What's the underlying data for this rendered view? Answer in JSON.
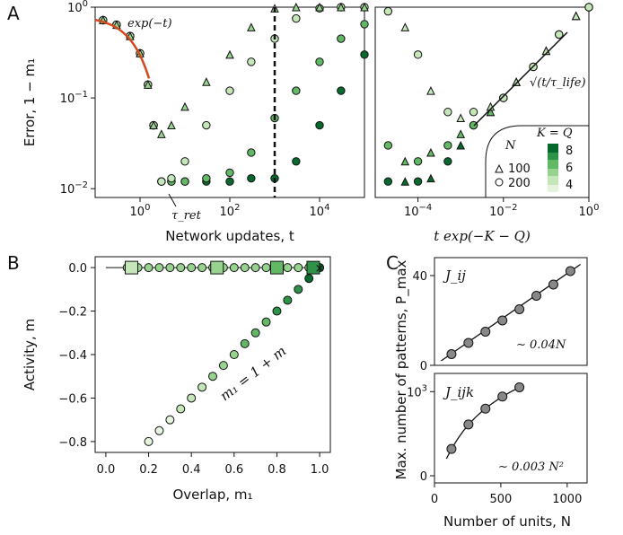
{
  "panels": {
    "A": "A",
    "B": "B",
    "C": "C"
  },
  "colors": {
    "shades": [
      "#e6f3df",
      "#c4e6b9",
      "#97d28f",
      "#63b866",
      "#2f9249",
      "#08692f"
    ],
    "fit_line": "#d24a1e",
    "marker_edge": "#111111",
    "gray_marker": "#888888"
  },
  "chart_data": [
    {
      "id": "A-left",
      "type": "scatter",
      "xscale": "log",
      "yscale": "log",
      "xlim": [
        0.1,
        100000
      ],
      "ylim": [
        0.008,
        1
      ],
      "xticks": [
        "10^0",
        "10^2",
        "10^4"
      ],
      "yticks": [
        "10^{-2}",
        "10^{-1}",
        "10^0"
      ],
      "xlabel": "Network updates, t",
      "ylabel": "Error, 1 − m₁",
      "annotations": [
        "exp(−t)",
        "τ_ret"
      ],
      "vline_x": 1000,
      "series": [
        {
          "N": 200,
          "K_Q": 8,
          "x": [
            0.15,
            0.3,
            0.6,
            1,
            1.5,
            2,
            3,
            5,
            10,
            30,
            100,
            300,
            1000,
            3000,
            10000,
            30000,
            100000
          ],
          "y": [
            0.72,
            0.64,
            0.48,
            0.31,
            0.14,
            0.05,
            0.012,
            0.012,
            0.012,
            0.012,
            0.012,
            0.013,
            0.013,
            0.02,
            0.05,
            0.12,
            0.3
          ]
        },
        {
          "N": 200,
          "K_Q": 6,
          "x": [
            0.15,
            0.3,
            0.6,
            1,
            1.5,
            2,
            3,
            5,
            10,
            30,
            100,
            300,
            1000,
            3000,
            10000,
            30000,
            100000
          ],
          "y": [
            0.72,
            0.64,
            0.48,
            0.31,
            0.14,
            0.05,
            0.012,
            0.012,
            0.012,
            0.013,
            0.015,
            0.025,
            0.06,
            0.12,
            0.25,
            0.45,
            0.65
          ]
        },
        {
          "N": 200,
          "K_Q": 4,
          "x": [
            0.15,
            0.3,
            0.6,
            1,
            1.5,
            2,
            3,
            5,
            10,
            30,
            100,
            300,
            1000,
            3000,
            10000,
            30000,
            100000
          ],
          "y": [
            0.72,
            0.64,
            0.48,
            0.31,
            0.14,
            0.05,
            0.012,
            0.013,
            0.02,
            0.05,
            0.12,
            0.25,
            0.45,
            0.75,
            0.97,
            1,
            1
          ]
        },
        {
          "N": 100,
          "K_Q": 4,
          "x": [
            0.15,
            0.3,
            0.6,
            1,
            1.5,
            2,
            3,
            5,
            10,
            30,
            100,
            300,
            1000,
            3000,
            10000,
            30000,
            100000
          ],
          "y": [
            0.72,
            0.64,
            0.48,
            0.31,
            0.14,
            0.05,
            0.04,
            0.05,
            0.08,
            0.15,
            0.3,
            0.6,
            0.97,
            1,
            1,
            1,
            1
          ]
        }
      ]
    },
    {
      "id": "A-right",
      "type": "scatter",
      "xscale": "log",
      "yscale": "log",
      "xlim": [
        1e-05,
        1
      ],
      "ylim": [
        0.008,
        1
      ],
      "xticks": [
        "10^{-4}",
        "10^{-2}",
        "10^0"
      ],
      "xlabel": "t exp(−K − Q)",
      "annotations": [
        "√(t/τ_life)"
      ],
      "legend": {
        "placement": "bottom-right",
        "N_title": "N",
        "N_entries": [
          "100",
          "200"
        ],
        "KQ_title": "K = Q",
        "KQ_entries": [
          "8",
          "6",
          "4"
        ]
      },
      "series": [
        {
          "K_Q": 8,
          "x": [
            2e-05,
            5e-05,
            0.0001,
            0.0002,
            0.0005,
            0.001,
            0.002,
            0.005,
            0.01,
            0.02,
            0.05,
            0.1,
            0.2,
            0.5,
            1
          ],
          "y": [
            0.012,
            0.012,
            0.012,
            0.013,
            0.02,
            0.03,
            0.05,
            0.07,
            0.1,
            0.15,
            0.22,
            0.33,
            0.5,
            0.8,
            1
          ]
        },
        {
          "K_Q": 6,
          "x": [
            2e-05,
            5e-05,
            0.0001,
            0.0002,
            0.0005,
            0.001,
            0.002,
            0.005,
            0.01,
            0.02,
            0.05,
            0.1,
            0.2,
            0.5,
            1
          ],
          "y": [
            0.03,
            0.02,
            0.02,
            0.025,
            0.03,
            0.04,
            0.05,
            0.07,
            0.1,
            0.15,
            0.22,
            0.33,
            0.5,
            0.8,
            1
          ]
        },
        {
          "K_Q": 4,
          "x": [
            2e-05,
            5e-05,
            0.0001,
            0.0002,
            0.0005,
            0.001,
            0.002,
            0.005,
            0.01,
            0.02,
            0.05,
            0.1,
            0.2,
            0.5,
            1
          ],
          "y": [
            0.9,
            0.6,
            0.3,
            0.12,
            0.07,
            0.06,
            0.07,
            0.08,
            0.1,
            0.15,
            0.22,
            0.33,
            0.5,
            0.8,
            1
          ]
        }
      ]
    },
    {
      "id": "B",
      "type": "scatter",
      "xlim": [
        -0.05,
        1.05
      ],
      "ylim": [
        -0.85,
        0.05
      ],
      "xticks": [
        "0.0",
        "0.2",
        "0.4",
        "0.6",
        "0.8",
        "1.0"
      ],
      "yticks": [
        "0.0",
        "−0.2",
        "−0.4",
        "−0.6",
        "−0.8"
      ],
      "xlabel": "Overlap, m₁",
      "ylabel": "Activity, m",
      "annotations": [
        "m₁ = 1 + m"
      ],
      "series": [
        {
          "name": "flat",
          "x": [
            0.1,
            0.15,
            0.2,
            0.25,
            0.3,
            0.35,
            0.4,
            0.45,
            0.5,
            0.55,
            0.6,
            0.65,
            0.7,
            0.75,
            0.8,
            0.85,
            0.9,
            0.95,
            1.0
          ],
          "y": [
            0,
            0,
            0,
            0,
            0,
            0,
            0,
            0,
            0,
            0,
            0,
            0,
            0,
            0,
            0,
            0,
            0,
            0,
            0
          ]
        },
        {
          "name": "diagonal",
          "x": [
            0.2,
            0.25,
            0.3,
            0.35,
            0.4,
            0.45,
            0.5,
            0.55,
            0.6,
            0.65,
            0.7,
            0.75,
            0.8,
            0.85,
            0.9,
            0.95,
            1.0
          ],
          "y": [
            -0.8,
            -0.75,
            -0.7,
            -0.65,
            -0.6,
            -0.55,
            -0.5,
            -0.45,
            -0.4,
            -0.35,
            -0.3,
            -0.25,
            -0.2,
            -0.15,
            -0.1,
            -0.05,
            0
          ]
        },
        {
          "name": "squares",
          "x": [
            0.12,
            0.52,
            0.8,
            0.97
          ],
          "y": [
            0,
            0,
            0,
            0
          ]
        }
      ]
    },
    {
      "id": "C-top",
      "type": "line",
      "xlim": [
        0,
        1150
      ],
      "ylim": [
        0,
        48
      ],
      "yticks": [
        "0",
        "40"
      ],
      "label": "J_ij",
      "annotation": "∼ 0.04N",
      "points": {
        "x": [
          128,
          256,
          384,
          512,
          640,
          768,
          896,
          1024
        ],
        "y": [
          5,
          10,
          15,
          20,
          25,
          31,
          36,
          42
        ]
      }
    },
    {
      "id": "C-bottom",
      "type": "line",
      "yscale": "log",
      "xlim": [
        0,
        1150
      ],
      "ylim": [
        0,
        2000
      ],
      "xticks": [
        "0",
        "500",
        "1000"
      ],
      "yticks": [
        "0",
        "10^3"
      ],
      "xlabel": "Number of units, N",
      "ylabel": "Max. number of patterns, P_max",
      "label": "J_ijk",
      "annotation": "∼ 0.003 N²",
      "points": {
        "x": [
          128,
          256,
          384,
          512,
          640
        ],
        "y": [
          50,
          200,
          440,
          790,
          1230
        ]
      }
    }
  ]
}
